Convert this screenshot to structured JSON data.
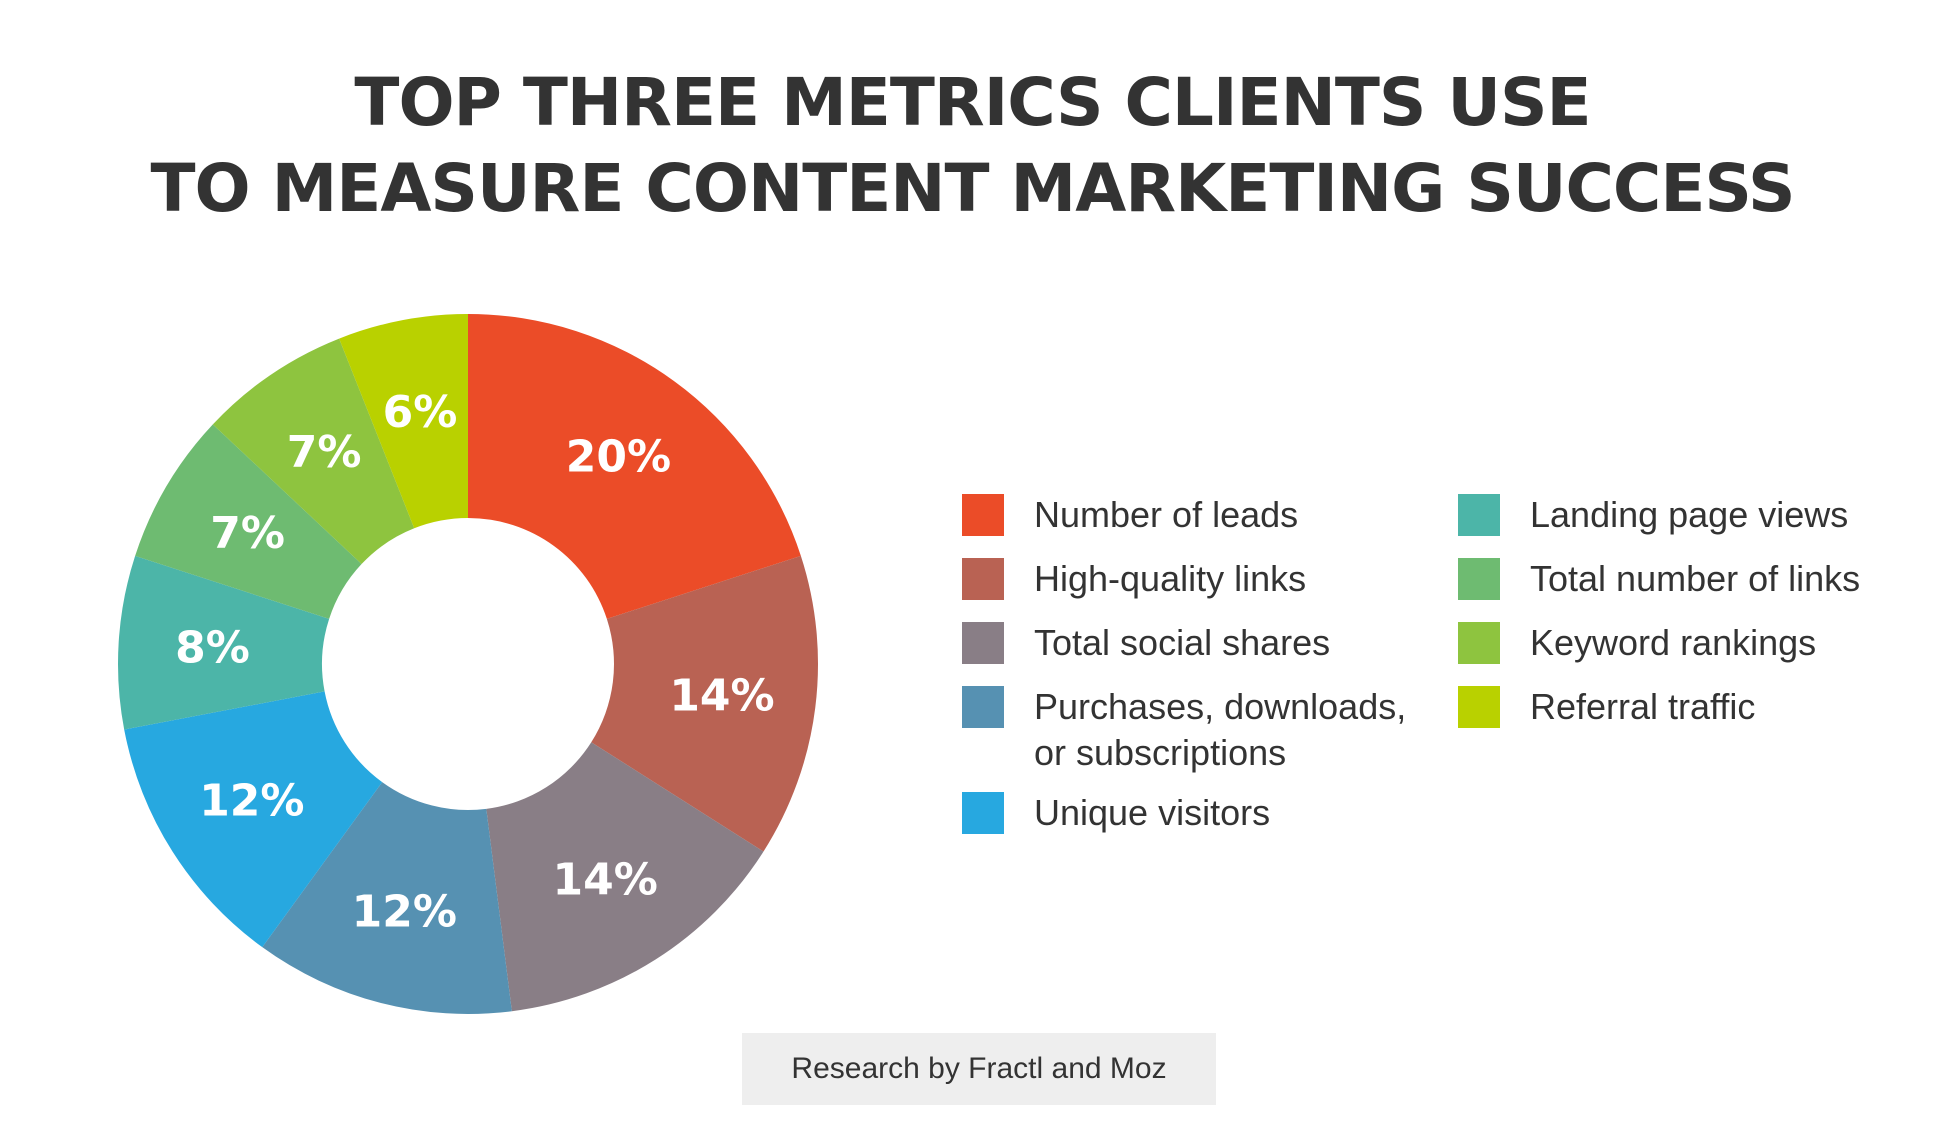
{
  "title": {
    "line1": "TOP THREE METRICS CLIENTS USE",
    "line2": "TO MEASURE CONTENT MARKETING SUCCESS"
  },
  "chart_data": {
    "type": "pie",
    "title": "TOP THREE METRICS CLIENTS USE TO MEASURE CONTENT MARKETING SUCCESS",
    "donut": true,
    "legend_position": "right",
    "categories": [
      "Number of leads",
      "High-quality links",
      "Total social shares",
      "Purchases, downloads,\nor subscriptions",
      "Unique visitors",
      "Landing page views",
      "Total number of links",
      "Keyword rankings",
      "Referral traffic"
    ],
    "values": [
      20,
      14,
      14,
      12,
      12,
      8,
      7,
      7,
      6
    ],
    "labels": [
      "20%",
      "14%",
      "14%",
      "12%",
      "12%",
      "8%",
      "7%",
      "7%",
      "6%"
    ],
    "colors": [
      "#eb4c28",
      "#b96253",
      "#897e86",
      "#5691b2",
      "#27a8e0",
      "#4cb5a8",
      "#6ebb71",
      "#8ec43f",
      "#b9d100"
    ]
  },
  "legend": {
    "items": [
      {
        "label": "Number of leads",
        "color": "#eb4c28"
      },
      {
        "label": "High-quality links",
        "color": "#b96253"
      },
      {
        "label": "Total social shares",
        "color": "#897e86"
      },
      {
        "label": "Purchases, downloads,\nor subscriptions",
        "color": "#5691b2"
      },
      {
        "label": "Unique visitors",
        "color": "#27a8e0"
      },
      {
        "label": "Landing page views",
        "color": "#4cb5a8"
      },
      {
        "label": "Total number of links",
        "color": "#6ebb71"
      },
      {
        "label": "Keyword rankings",
        "color": "#8ec43f"
      },
      {
        "label": "Referral traffic",
        "color": "#b9d100"
      }
    ]
  },
  "footer": {
    "credit": "Research by Fractl and Moz"
  }
}
